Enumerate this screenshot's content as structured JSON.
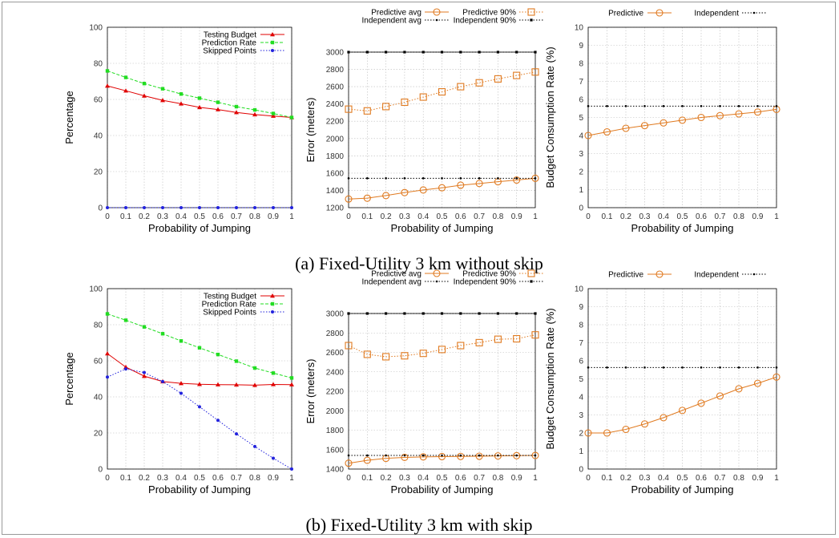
{
  "colors": {
    "testing_budget": "#e00000",
    "prediction_rate": "#22dd22",
    "skipped_points": "#2222dd",
    "predictive": "#e07a20",
    "independent": "#000000",
    "grid": "#bbbbbb"
  },
  "captions": [
    "(a) Fixed-Utility 3 km without skip",
    "(b) Fixed-Utility 3 km with skip"
  ],
  "chart_data": [
    {
      "type": "line",
      "xlabel": "Probability of Jumping",
      "ylabel": "Percentage",
      "xlim": [
        0,
        1
      ],
      "ylim": [
        0,
        100
      ],
      "xticks": [
        "0",
        "0.1",
        "0.2",
        "0.3",
        "0.4",
        "0.5",
        "0.6",
        "0.7",
        "0.8",
        "0.9",
        "1"
      ],
      "yticks": [
        "0",
        "20",
        "40",
        "60",
        "80",
        "100"
      ],
      "grid": true,
      "legend": "top-right",
      "x": [
        0,
        0.1,
        0.2,
        0.3,
        0.4,
        0.5,
        0.6,
        0.7,
        0.8,
        0.9,
        1
      ],
      "series": [
        {
          "name": "Testing Budget",
          "color": "#e00000",
          "marker": "triangle",
          "dash": "solid",
          "values": [
            67.5,
            64.8,
            62.0,
            59.5,
            57.6,
            55.6,
            54.4,
            52.8,
            51.6,
            50.8,
            50.0
          ]
        },
        {
          "name": "Prediction Rate",
          "color": "#22dd22",
          "marker": "square",
          "dash": "dashed",
          "values": [
            75.8,
            72.2,
            68.8,
            65.9,
            63.0,
            60.7,
            58.4,
            56.0,
            54.2,
            52.2,
            50.0
          ]
        },
        {
          "name": "Skipped Points",
          "color": "#2222dd",
          "marker": "dot",
          "dash": "dotted",
          "values": [
            0,
            0,
            0,
            0,
            0,
            0,
            0,
            0,
            0,
            0,
            0
          ]
        }
      ]
    },
    {
      "type": "line",
      "xlabel": "Probability of Jumping",
      "ylabel": "Error (meters)",
      "xlim": [
        0,
        1
      ],
      "ylim": [
        1200,
        3000
      ],
      "xticks": [
        "0",
        "0.1",
        "0.2",
        "0.3",
        "0.4",
        "0.5",
        "0.6",
        "0.7",
        "0.8",
        "0.9",
        "1"
      ],
      "yticks": [
        "1200",
        "1400",
        "1600",
        "1800",
        "2000",
        "2200",
        "2400",
        "2600",
        "2800",
        "3000"
      ],
      "grid": true,
      "legend": "top",
      "x": [
        0,
        0.1,
        0.2,
        0.3,
        0.4,
        0.5,
        0.6,
        0.7,
        0.8,
        0.9,
        1
      ],
      "series": [
        {
          "name": "Predictive avg",
          "color": "#e07a20",
          "marker": "circle",
          "dash": "solid",
          "values": [
            1300,
            1310,
            1340,
            1375,
            1405,
            1430,
            1460,
            1480,
            1500,
            1520,
            1540
          ]
        },
        {
          "name": "Predictive 90%",
          "color": "#e07a20",
          "marker": "square-open",
          "dash": "dotted",
          "values": [
            2340,
            2320,
            2370,
            2420,
            2480,
            2540,
            2600,
            2645,
            2690,
            2730,
            2770
          ]
        },
        {
          "name": "Independent avg",
          "color": "#000000",
          "marker": "small-dot",
          "dash": "dotted",
          "values": [
            1540,
            1540,
            1540,
            1540,
            1540,
            1540,
            1540,
            1540,
            1540,
            1540,
            1540
          ]
        },
        {
          "name": "Independent 90%",
          "color": "#000000",
          "marker": "small-square",
          "dash": "dotted",
          "values": [
            3000,
            3000,
            3000,
            3000,
            3000,
            3000,
            3000,
            3000,
            3000,
            3000,
            3000
          ]
        }
      ]
    },
    {
      "type": "line",
      "xlabel": "Probability of Jumping",
      "ylabel": "Budget Consumption Rate (%)",
      "xlim": [
        0,
        1
      ],
      "ylim": [
        0,
        10
      ],
      "xticks": [
        "0",
        "0.1",
        "0.2",
        "0.3",
        "0.4",
        "0.5",
        "0.6",
        "0.7",
        "0.8",
        "0.9",
        "1"
      ],
      "yticks": [
        "0",
        "1",
        "2",
        "3",
        "4",
        "5",
        "6",
        "7",
        "8",
        "9",
        "10"
      ],
      "grid": true,
      "legend": "top",
      "x": [
        0,
        0.1,
        0.2,
        0.3,
        0.4,
        0.5,
        0.6,
        0.7,
        0.8,
        0.9,
        1
      ],
      "series": [
        {
          "name": "Predictive",
          "color": "#e07a20",
          "marker": "circle",
          "dash": "solid",
          "values": [
            4.0,
            4.2,
            4.4,
            4.55,
            4.7,
            4.85,
            5.0,
            5.1,
            5.2,
            5.3,
            5.45
          ]
        },
        {
          "name": "Independent",
          "color": "#000000",
          "marker": "small-dot",
          "dash": "dotted",
          "values": [
            5.63,
            5.63,
            5.63,
            5.63,
            5.63,
            5.63,
            5.63,
            5.63,
            5.63,
            5.63,
            5.63
          ]
        }
      ]
    },
    {
      "type": "line",
      "xlabel": "Probability of Jumping",
      "ylabel": "Percentage",
      "xlim": [
        0,
        1
      ],
      "ylim": [
        0,
        100
      ],
      "xticks": [
        "0",
        "0.1",
        "0.2",
        "0.3",
        "0.4",
        "0.5",
        "0.6",
        "0.7",
        "0.8",
        "0.9",
        "1"
      ],
      "yticks": [
        "0",
        "20",
        "40",
        "60",
        "80",
        "100"
      ],
      "grid": true,
      "legend": "top-right",
      "x": [
        0,
        0.1,
        0.2,
        0.3,
        0.4,
        0.5,
        0.6,
        0.7,
        0.8,
        0.9,
        1
      ],
      "series": [
        {
          "name": "Testing Budget",
          "color": "#e00000",
          "marker": "triangle",
          "dash": "solid",
          "values": [
            64.0,
            56.5,
            51.5,
            48.5,
            47.5,
            47.0,
            46.8,
            46.7,
            46.5,
            46.9,
            46.8
          ]
        },
        {
          "name": "Prediction Rate",
          "color": "#22dd22",
          "marker": "square",
          "dash": "dashed",
          "values": [
            86.0,
            82.5,
            78.8,
            75.0,
            71.0,
            67.2,
            63.5,
            59.8,
            56.0,
            53.2,
            50.5
          ]
        },
        {
          "name": "Skipped Points",
          "color": "#2222dd",
          "marker": "dot",
          "dash": "dotted",
          "values": [
            51.0,
            55.5,
            53.5,
            48.5,
            42.0,
            34.5,
            27.0,
            19.5,
            12.5,
            6.0,
            0
          ]
        }
      ]
    },
    {
      "type": "line",
      "xlabel": "Probability of Jumping",
      "ylabel": "Error (meters)",
      "xlim": [
        0,
        1
      ],
      "ylim": [
        1400,
        3000
      ],
      "xticks": [
        "0",
        "0.1",
        "0.2",
        "0.3",
        "0.4",
        "0.5",
        "0.6",
        "0.7",
        "0.8",
        "0.9",
        "1"
      ],
      "yticks": [
        "1400",
        "1600",
        "1800",
        "2000",
        "2200",
        "2400",
        "2600",
        "2800",
        "3000"
      ],
      "grid": true,
      "legend": "top",
      "x": [
        0,
        0.1,
        0.2,
        0.3,
        0.4,
        0.5,
        0.6,
        0.7,
        0.8,
        0.9,
        1
      ],
      "series": [
        {
          "name": "Predictive avg",
          "color": "#e07a20",
          "marker": "circle",
          "dash": "solid",
          "values": [
            1460,
            1490,
            1510,
            1520,
            1525,
            1528,
            1530,
            1532,
            1535,
            1538,
            1540
          ]
        },
        {
          "name": "Predictive 90%",
          "color": "#e07a20",
          "marker": "square-open",
          "dash": "dotted",
          "values": [
            2670,
            2580,
            2555,
            2565,
            2590,
            2630,
            2670,
            2700,
            2735,
            2740,
            2780
          ]
        },
        {
          "name": "Independent avg",
          "color": "#000000",
          "marker": "small-dot",
          "dash": "dotted",
          "values": [
            1540,
            1540,
            1540,
            1540,
            1540,
            1540,
            1540,
            1540,
            1540,
            1540,
            1540
          ]
        },
        {
          "name": "Independent 90%",
          "color": "#000000",
          "marker": "small-square",
          "dash": "dotted",
          "values": [
            3000,
            3000,
            3000,
            3000,
            3000,
            3000,
            3000,
            3000,
            3000,
            3000,
            3000
          ]
        }
      ]
    },
    {
      "type": "line",
      "xlabel": "Probability of Jumping",
      "ylabel": "Budget Consumption Rate (%)",
      "xlim": [
        0,
        1
      ],
      "ylim": [
        0,
        10
      ],
      "xticks": [
        "0",
        "0.1",
        "0.2",
        "0.3",
        "0.4",
        "0.5",
        "0.6",
        "0.7",
        "0.8",
        "0.9",
        "1"
      ],
      "yticks": [
        "0",
        "1",
        "2",
        "3",
        "4",
        "5",
        "6",
        "7",
        "8",
        "9",
        "10"
      ],
      "grid": true,
      "legend": "top",
      "x": [
        0,
        0.1,
        0.2,
        0.3,
        0.4,
        0.5,
        0.6,
        0.7,
        0.8,
        0.9,
        1
      ],
      "series": [
        {
          "name": "Predictive",
          "color": "#e07a20",
          "marker": "circle",
          "dash": "solid",
          "values": [
            2.0,
            2.0,
            2.2,
            2.5,
            2.85,
            3.25,
            3.65,
            4.05,
            4.45,
            4.75,
            5.1
          ]
        },
        {
          "name": "Independent",
          "color": "#000000",
          "marker": "small-dot",
          "dash": "dotted",
          "values": [
            5.63,
            5.63,
            5.63,
            5.63,
            5.63,
            5.63,
            5.63,
            5.63,
            5.63,
            5.63,
            5.63
          ]
        }
      ]
    }
  ]
}
